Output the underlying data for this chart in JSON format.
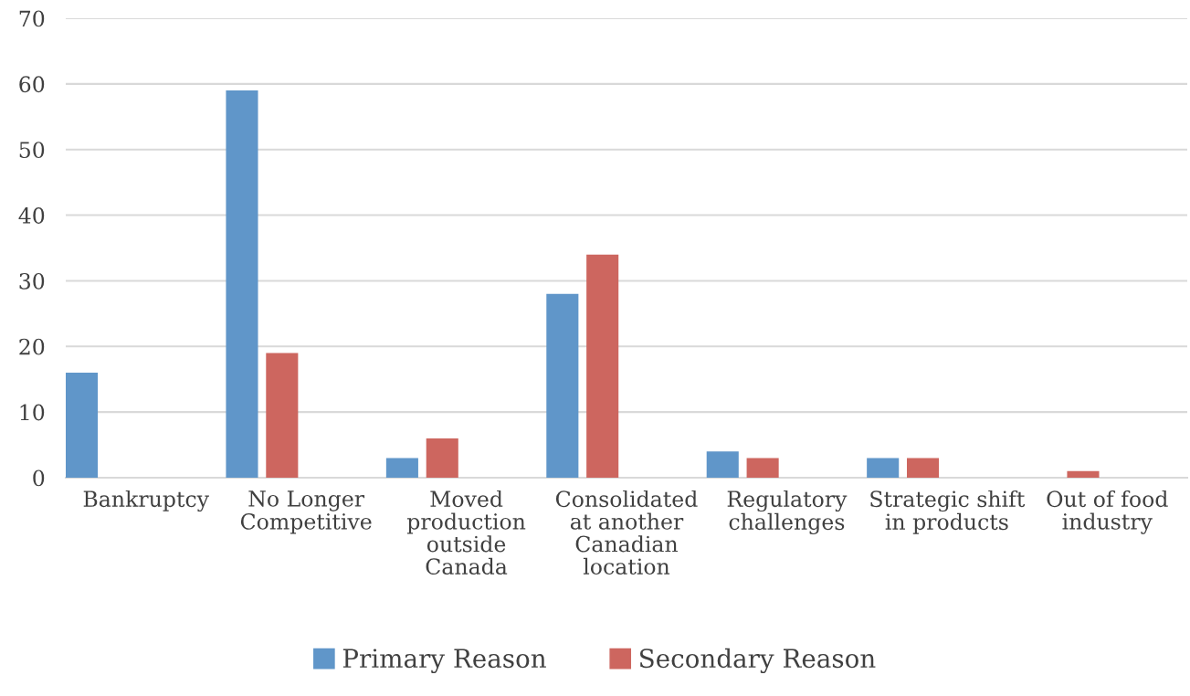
{
  "chart_data": {
    "type": "bar",
    "categories": [
      "Bankruptcy",
      "No Longer\nCompetitive",
      "Moved\nproduction\noutside\nCanada",
      "Consolidated\nat another\nCanadian\nlocation",
      "Regulatory\nchallenges",
      "Strategic shift\nin products",
      "Out of food\nindustry"
    ],
    "series": [
      {
        "name": "Primary Reason",
        "color": "#6096c9",
        "values": [
          16,
          59,
          3,
          28,
          4,
          3,
          0
        ]
      },
      {
        "name": "Secondary Reason",
        "color": "#cd665f",
        "values": [
          0,
          19,
          6,
          34,
          3,
          3,
          1
        ]
      }
    ],
    "ylim": [
      0,
      70
    ],
    "yticks": [
      0,
      10,
      20,
      30,
      40,
      50,
      60,
      70
    ],
    "grid": "y",
    "legend": "bottom"
  }
}
